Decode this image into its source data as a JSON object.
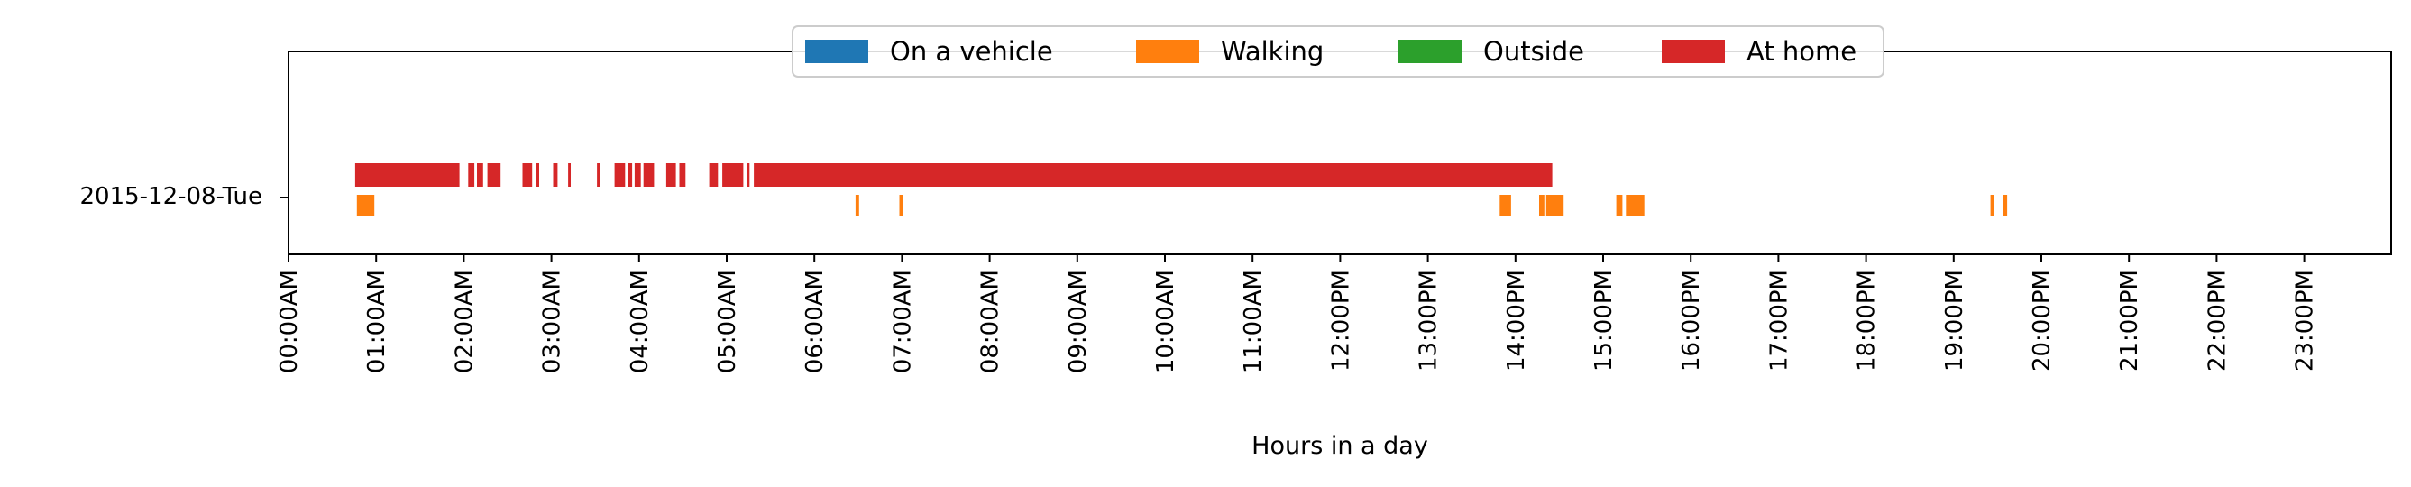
{
  "chart_data": {
    "type": "bar",
    "subtype": "horizontal-timeline",
    "title": "",
    "xlabel": "Hours in a day",
    "ylabel": "",
    "xlim": [
      0,
      24
    ],
    "grid": false,
    "legend_position": "top-center",
    "row_label": "2015-12-08-Tue",
    "x_tick_labels": [
      "00:00AM",
      "01:00AM",
      "02:00AM",
      "03:00AM",
      "04:00AM",
      "05:00AM",
      "06:00AM",
      "07:00AM",
      "08:00AM",
      "09:00AM",
      "10:00AM",
      "11:00AM",
      "12:00PM",
      "13:00PM",
      "14:00PM",
      "15:00PM",
      "16:00PM",
      "17:00PM",
      "18:00PM",
      "19:00PM",
      "20:00PM",
      "21:00PM",
      "22:00PM",
      "23:00PM"
    ],
    "series": [
      {
        "name": "On a vehicle",
        "color": "#1f77b4",
        "intervals": []
      },
      {
        "name": "Walking",
        "color": "#ff7f0e",
        "intervals": [
          [
            0.78,
            0.98
          ],
          [
            6.47,
            6.51
          ],
          [
            6.97,
            7.01
          ],
          [
            13.82,
            13.95
          ],
          [
            14.27,
            14.33
          ],
          [
            14.35,
            14.55
          ],
          [
            15.15,
            15.22
          ],
          [
            15.26,
            15.47
          ],
          [
            19.42,
            19.46
          ],
          [
            19.56,
            19.61
          ]
        ]
      },
      {
        "name": "Outside",
        "color": "#2ca02c",
        "intervals": []
      },
      {
        "name": "At home",
        "color": "#d62728",
        "intervals": [
          [
            0.76,
            1.95
          ],
          [
            2.05,
            2.12
          ],
          [
            2.15,
            2.22
          ],
          [
            2.27,
            2.42
          ],
          [
            2.67,
            2.78
          ],
          [
            2.82,
            2.86
          ],
          [
            3.02,
            3.07
          ],
          [
            3.19,
            3.22
          ],
          [
            3.52,
            3.55
          ],
          [
            3.72,
            3.84
          ],
          [
            3.87,
            3.92
          ],
          [
            3.95,
            4.02
          ],
          [
            4.05,
            4.17
          ],
          [
            4.31,
            4.42
          ],
          [
            4.46,
            4.53
          ],
          [
            4.8,
            4.9
          ],
          [
            4.95,
            5.19
          ],
          [
            5.23,
            5.26
          ],
          [
            5.31,
            14.42
          ]
        ]
      }
    ]
  }
}
